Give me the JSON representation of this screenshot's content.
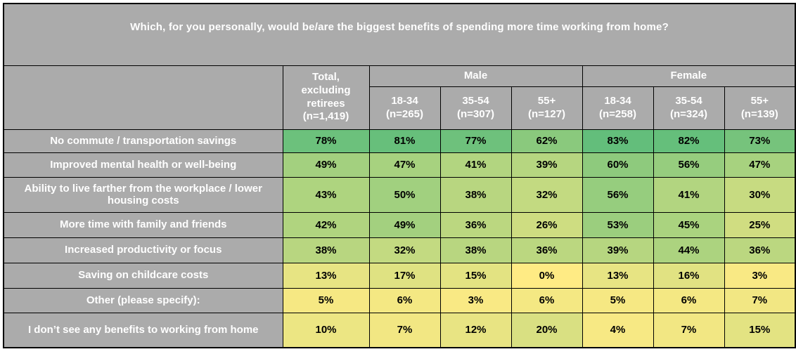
{
  "colors": {
    "header-bg": "#ABABAB",
    "header-text": "#FFFFFF",
    "border-color": "#000000",
    "value-text": "#000000",
    "page-bg": "#FFFFFF"
  },
  "chart_data": {
    "type": "heatmap",
    "title": "Which, for you personally, would be/are the biggest benefits of spending more time working from home?",
    "total_column_label": "Total, excluding retirees (n=1,419)",
    "column_groups": [
      {
        "label": "Male",
        "subcolumns": [
          {
            "age": "18-34",
            "n": "(n=265)"
          },
          {
            "age": "35-54",
            "n": "(n=307)"
          },
          {
            "age": "55+",
            "n": "(n=127)"
          }
        ]
      },
      {
        "label": "Female",
        "subcolumns": [
          {
            "age": "18-34",
            "n": "(n=258)"
          },
          {
            "age": "35-54",
            "n": "(n=324)"
          },
          {
            "age": "55+",
            "n": "(n=139)"
          }
        ]
      }
    ],
    "rows": [
      {
        "label": "No commute / transportation savings",
        "values": [
          78,
          81,
          77,
          62,
          83,
          82,
          73
        ]
      },
      {
        "label": "Improved mental health or well-being",
        "values": [
          49,
          47,
          41,
          39,
          60,
          56,
          47
        ]
      },
      {
        "label": "Ability to live farther from the workplace / lower housing costs",
        "values": [
          43,
          50,
          38,
          32,
          56,
          41,
          30
        ]
      },
      {
        "label": "More time with family and friends",
        "values": [
          42,
          49,
          36,
          26,
          53,
          45,
          25
        ]
      },
      {
        "label": "Increased productivity or focus",
        "values": [
          38,
          32,
          38,
          36,
          39,
          44,
          36
        ]
      },
      {
        "label": "Saving on childcare costs",
        "values": [
          13,
          17,
          15,
          0,
          13,
          16,
          3
        ]
      },
      {
        "label": "Other (please specify):",
        "values": [
          5,
          6,
          3,
          6,
          5,
          6,
          7
        ]
      },
      {
        "label": "I don’t see any benefits to working from home",
        "values": [
          10,
          7,
          12,
          20,
          4,
          7,
          15
        ]
      }
    ],
    "value_suffix": "%",
    "color_scale": {
      "min_value": 0,
      "max_value": 83,
      "min_color": "#FFEB84",
      "max_color": "#63BE7B"
    }
  }
}
